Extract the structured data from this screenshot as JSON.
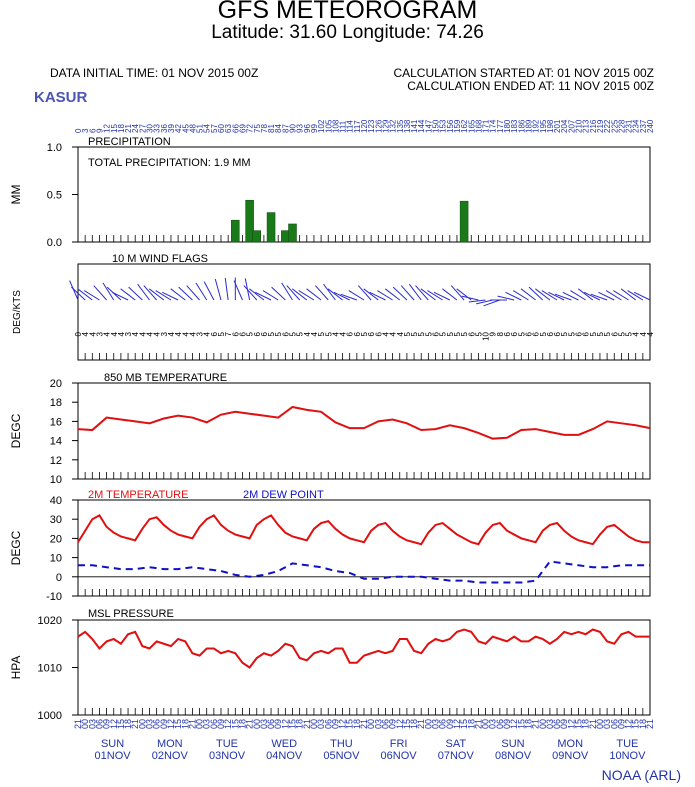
{
  "header": {
    "title": "GFS METEOROGRAM",
    "subtitle": "Latitude: 31.60 Longitude:  74.26",
    "data_initial": "DATA INITIAL TIME: 01 NOV 2015 00Z",
    "calc_started": "CALCULATION STARTED AT: 01 NOV 2015 00Z",
    "calc_ended": "CALCULATION ENDED AT: 11 NOV 2015 00Z",
    "station": "KASUR",
    "credit": "NOAA (ARL)"
  },
  "colors": {
    "precip": "#1a7a1a",
    "wind": "#2b2bd0",
    "temp": "#e01010",
    "dew": "#1010c8",
    "axis_text": "#2233aa"
  },
  "chart_data": [
    {
      "type": "bar",
      "name": "precipitation",
      "panel_label": "PRECIPITATION",
      "annotation": "TOTAL PRECIPITATION:   1.9 MM",
      "ylabel": "MM",
      "ylim": [
        0,
        1.0
      ],
      "yticks": [
        "1.0",
        "0.5",
        "0.0"
      ],
      "x_hours": [
        66,
        72,
        75,
        81,
        87,
        90,
        162
      ],
      "values": [
        0.23,
        0.44,
        0.12,
        0.31,
        0.12,
        0.19,
        0.43
      ]
    },
    {
      "type": "line",
      "name": "wind",
      "panel_label": "10 M  WIND FLAGS",
      "ylabel": "DEG/KTS"
    },
    {
      "type": "line",
      "name": "temp850",
      "panel_label": "850 MB  TEMPERATURE",
      "ylabel": "DEGC",
      "ylim": [
        10,
        20
      ],
      "yticks": [
        "20",
        "18",
        "16",
        "14",
        "12",
        "10"
      ],
      "x_hours": [
        0,
        6,
        12,
        18,
        24,
        30,
        36,
        42,
        48,
        54,
        60,
        66,
        72,
        78,
        84,
        90,
        96,
        102,
        108,
        114,
        120,
        126,
        132,
        138,
        144,
        150,
        156,
        162,
        168,
        174,
        180,
        186,
        192,
        198,
        204,
        210,
        216,
        222,
        228,
        234,
        240
      ],
      "values": [
        15.2,
        15.1,
        16.4,
        16.2,
        16.0,
        15.8,
        16.3,
        16.6,
        16.4,
        15.9,
        16.7,
        17.0,
        16.8,
        16.6,
        16.4,
        17.5,
        17.2,
        17.0,
        15.9,
        15.3,
        15.3,
        16.0,
        16.2,
        15.8,
        15.1,
        15.2,
        15.6,
        15.3,
        14.8,
        14.2,
        14.3,
        15.1,
        15.2,
        14.9,
        14.6,
        14.6,
        15.2,
        16.0,
        15.8,
        15.6,
        15.3
      ]
    },
    {
      "type": "line",
      "name": "surface",
      "ylabel": "DEGC",
      "ylim": [
        -10,
        40
      ],
      "yticks": [
        "40",
        "30",
        "20",
        "10",
        "0",
        "-10"
      ],
      "series": [
        {
          "name": "2M TEMPERATURE",
          "x_hours": [
            0,
            3,
            6,
            9,
            12,
            15,
            18,
            21,
            24,
            27,
            30,
            33,
            36,
            39,
            42,
            45,
            48,
            51,
            54,
            57,
            60,
            63,
            66,
            69,
            72,
            75,
            78,
            81,
            84,
            87,
            90,
            93,
            96,
            99,
            102,
            105,
            108,
            111,
            114,
            117,
            120,
            123,
            126,
            129,
            132,
            135,
            138,
            141,
            144,
            147,
            150,
            153,
            156,
            159,
            162,
            165,
            168,
            171,
            174,
            177,
            180,
            183,
            186,
            189,
            192,
            195,
            198,
            201,
            204,
            207,
            210,
            213,
            216,
            219,
            222,
            225,
            228,
            231,
            234,
            237,
            240
          ],
          "values": [
            18,
            24,
            30,
            32,
            26,
            23,
            21,
            20,
            19,
            25,
            30,
            31,
            27,
            24,
            22,
            21,
            20,
            26,
            30,
            32,
            27,
            24,
            22,
            21,
            20,
            27,
            30,
            32,
            27,
            23,
            21,
            20,
            19,
            25,
            28,
            29,
            25,
            22,
            20,
            19,
            18,
            24,
            27,
            28,
            24,
            21,
            19,
            18,
            17,
            23,
            27,
            28,
            25,
            22,
            20,
            18,
            17,
            23,
            27,
            28,
            24,
            22,
            20,
            19,
            18,
            24,
            27,
            28,
            24,
            21,
            19,
            18,
            17,
            22,
            26,
            27,
            24,
            21,
            19,
            18,
            18
          ]
        },
        {
          "name": "2M  DEW POINT",
          "x_hours": [
            0,
            6,
            12,
            18,
            24,
            30,
            36,
            42,
            48,
            54,
            60,
            66,
            72,
            78,
            84,
            90,
            96,
            102,
            108,
            114,
            120,
            126,
            132,
            138,
            144,
            150,
            156,
            162,
            168,
            174,
            180,
            186,
            192,
            198,
            204,
            210,
            216,
            222,
            228,
            234,
            240
          ],
          "values": [
            6,
            6,
            5,
            4,
            4,
            5,
            4,
            4,
            5,
            4,
            3,
            1,
            0,
            1,
            3,
            7,
            6,
            5,
            3,
            2,
            -1,
            -1,
            0,
            0,
            0,
            -1,
            -2,
            -2,
            -3,
            -3,
            -3,
            -3,
            -2,
            8,
            7,
            6,
            5,
            5,
            6,
            6,
            6
          ]
        }
      ]
    },
    {
      "type": "line",
      "name": "pressure",
      "panel_label": "MSL PRESSURE",
      "ylabel": "HPA",
      "ylim": [
        1000,
        1020
      ],
      "yticks": [
        "1020",
        "1010",
        "1000"
      ],
      "x_hours": [
        0,
        3,
        6,
        9,
        12,
        15,
        18,
        21,
        24,
        27,
        30,
        33,
        36,
        39,
        42,
        45,
        48,
        51,
        54,
        57,
        60,
        63,
        66,
        69,
        72,
        75,
        78,
        81,
        84,
        87,
        90,
        93,
        96,
        99,
        102,
        105,
        108,
        111,
        114,
        117,
        120,
        123,
        126,
        129,
        132,
        135,
        138,
        141,
        144,
        147,
        150,
        153,
        156,
        159,
        162,
        165,
        168,
        171,
        174,
        177,
        180,
        183,
        186,
        189,
        192,
        195,
        198,
        201,
        204,
        207,
        210,
        213,
        216,
        219,
        222,
        225,
        228,
        231,
        234,
        237,
        240
      ],
      "values": [
        1016.5,
        1017.5,
        1016,
        1014,
        1015.5,
        1016,
        1015,
        1017,
        1017.5,
        1014.5,
        1014,
        1015.5,
        1015,
        1014.5,
        1016,
        1015.5,
        1013,
        1012.5,
        1014,
        1014,
        1013,
        1013.5,
        1013,
        1011,
        1010,
        1012,
        1013,
        1012.5,
        1013.5,
        1015,
        1014.5,
        1012,
        1011.5,
        1013,
        1013.5,
        1013,
        1014,
        1014,
        1011,
        1011,
        1012.5,
        1013,
        1013.5,
        1013,
        1013.5,
        1016,
        1016,
        1013.5,
        1013,
        1015,
        1016,
        1015.5,
        1016,
        1017.5,
        1018,
        1017.5,
        1015.5,
        1015,
        1016.5,
        1016,
        1015.5,
        1016.5,
        1015.5,
        1015.5,
        1016.5,
        1016,
        1015,
        1016,
        1017.5,
        1017,
        1017.5,
        1017,
        1018,
        1017.5,
        1015.5,
        1015,
        1017,
        1017.5,
        1016.5,
        1016.5,
        1016.5
      ]
    }
  ],
  "axis": {
    "top_hours": [
      "0",
      "3",
      "6",
      "9",
      "12",
      "15",
      "18",
      "21",
      "24",
      "27",
      "30",
      "33",
      "36",
      "39",
      "42",
      "45",
      "48",
      "51",
      "54",
      "57",
      "60",
      "63",
      "66",
      "69",
      "72",
      "75",
      "78",
      "81",
      "84",
      "87",
      "90",
      "93",
      "96",
      "99",
      "102",
      "105",
      "108",
      "111",
      "114",
      "117",
      "120",
      "123",
      "126",
      "129",
      "132",
      "135",
      "138",
      "141",
      "144",
      "147",
      "150",
      "153",
      "156",
      "159",
      "162",
      "165",
      "168",
      "171",
      "174",
      "177",
      "180",
      "183",
      "186",
      "189",
      "192",
      "195",
      "198",
      "201",
      "204",
      "207",
      "210",
      "213",
      "216",
      "219",
      "222",
      "225",
      "228",
      "231",
      "234",
      "237",
      "240"
    ],
    "bottom_hours": [
      "21",
      "00",
      "03",
      "06",
      "09",
      "12",
      "15",
      "18",
      "21",
      "00",
      "03",
      "06",
      "09",
      "12",
      "15",
      "18",
      "21",
      "00",
      "03",
      "06",
      "09",
      "12",
      "15",
      "18",
      "21",
      "00",
      "03",
      "06",
      "09",
      "12",
      "15",
      "18",
      "21",
      "00",
      "03",
      "06",
      "09",
      "12",
      "15",
      "18",
      "21",
      "00",
      "03",
      "06",
      "09",
      "12",
      "15",
      "18",
      "21",
      "00",
      "03",
      "06",
      "09",
      "12",
      "15",
      "18",
      "21",
      "00",
      "03",
      "06",
      "09",
      "12",
      "15",
      "18",
      "21",
      "00",
      "03",
      "06",
      "09",
      "12",
      "15",
      "18",
      "21",
      "00",
      "03",
      "06",
      "09",
      "12",
      "15",
      "18",
      "21"
    ],
    "days": [
      {
        "dow": "SUN",
        "date": "01NOV"
      },
      {
        "dow": "MON",
        "date": "02NOV"
      },
      {
        "dow": "TUE",
        "date": "03NOV"
      },
      {
        "dow": "WED",
        "date": "04NOV"
      },
      {
        "dow": "THU",
        "date": "05NOV"
      },
      {
        "dow": "FRI",
        "date": "06NOV"
      },
      {
        "dow": "SAT",
        "date": "07NOV"
      },
      {
        "dow": "SUN",
        "date": "08NOV"
      },
      {
        "dow": "MON",
        "date": "09NOV"
      },
      {
        "dow": "TUE",
        "date": "10NOV"
      }
    ],
    "wind_speeds": [
      "0",
      "4",
      "4",
      "3",
      "4",
      "4",
      "4",
      "3",
      "4",
      "4",
      "4",
      "4",
      "3",
      "4",
      "4",
      "4",
      "4",
      "3",
      "4",
      "6",
      "5",
      "7",
      "6",
      "6",
      "5",
      "6",
      "6",
      "5",
      "5",
      "6",
      "5",
      "5",
      "4",
      "4",
      "5",
      "5",
      "4",
      "4",
      "6",
      "6",
      "5",
      "6",
      "6",
      "4",
      "4",
      "4",
      "5",
      "5",
      "5",
      "5",
      "6",
      "5",
      "5",
      "5",
      "5",
      "6",
      "5",
      "10",
      "9",
      "8",
      "6",
      "6",
      "5",
      "6",
      "6",
      "5",
      "6",
      "6",
      "5",
      "5",
      "6",
      "6",
      "5",
      "5",
      "5",
      "6",
      "5",
      "5",
      "4",
      "4",
      "4"
    ]
  }
}
